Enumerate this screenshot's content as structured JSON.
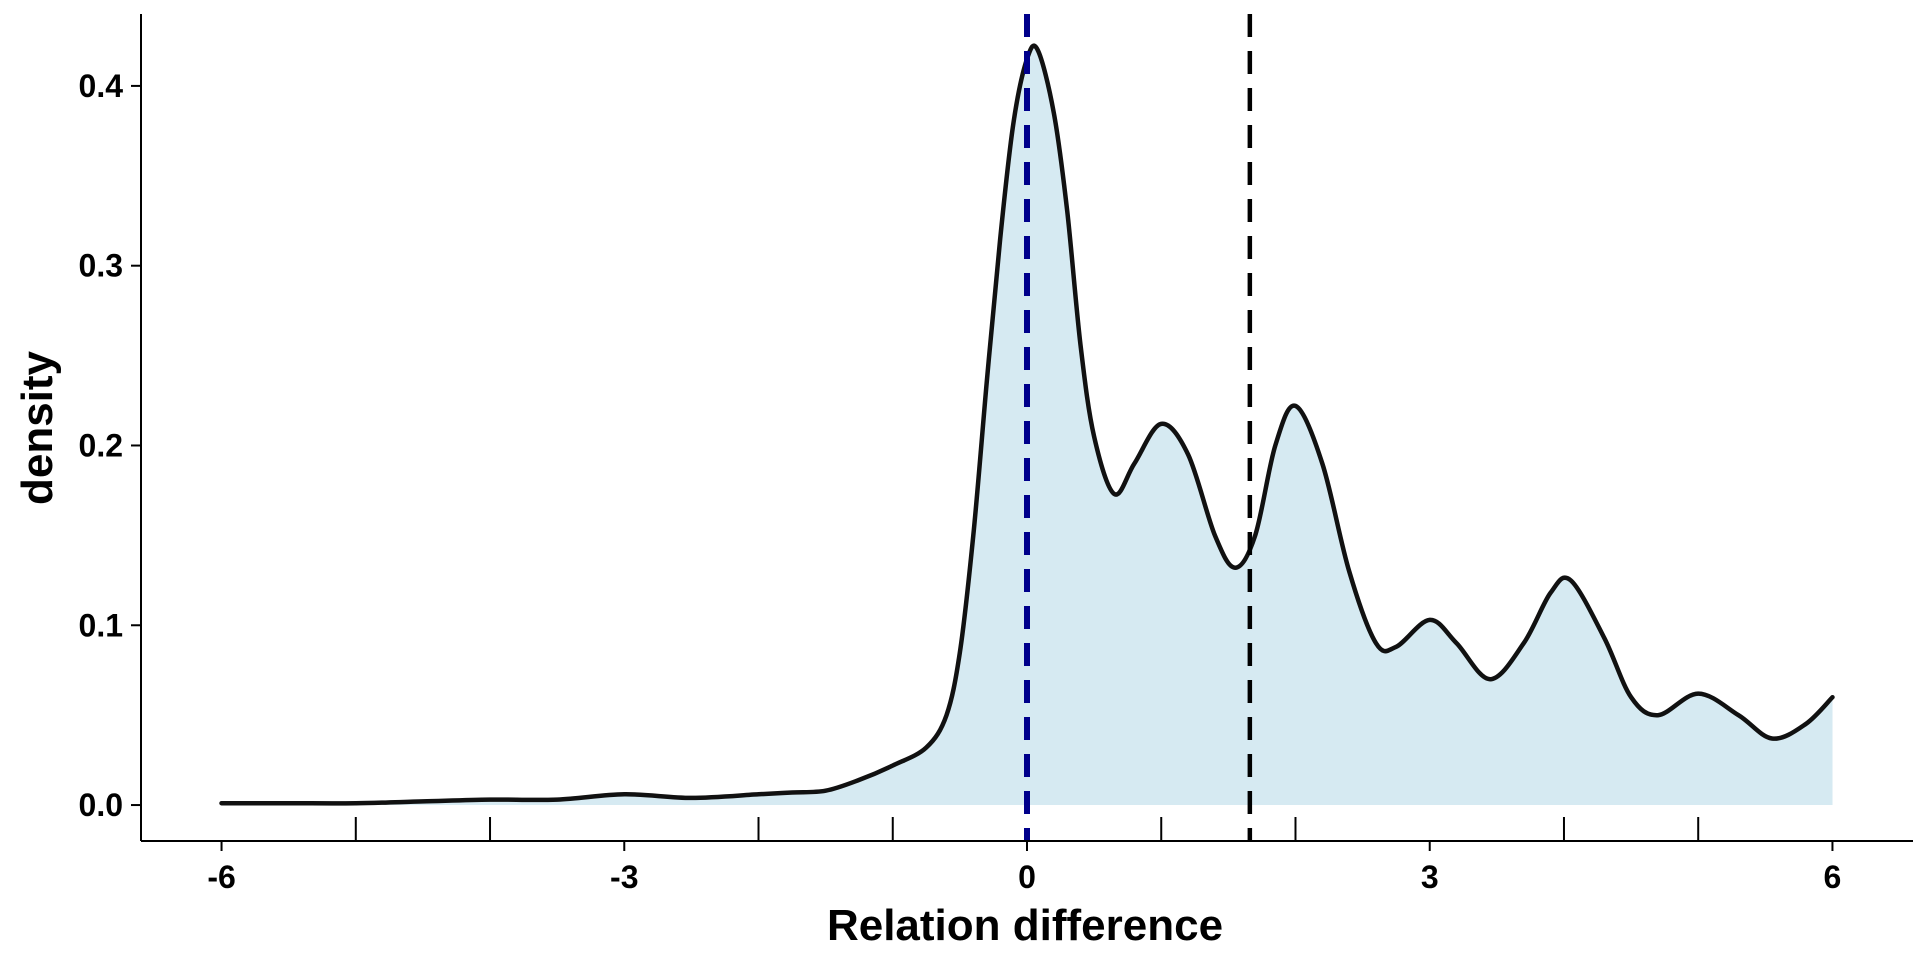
{
  "chart_data": {
    "type": "area",
    "title": "",
    "xlabel": "Relation difference",
    "ylabel": "density",
    "xlim": [
      -6.6,
      6.6
    ],
    "ylim": [
      -0.02,
      0.44
    ],
    "x_ticks": [
      -6,
      -3,
      0,
      3,
      6
    ],
    "x_tick_labels": [
      "-6",
      "-3",
      "0",
      "3",
      "6"
    ],
    "x_minor_ticks": [
      -5,
      -4,
      -2,
      -1,
      1,
      2,
      4,
      5
    ],
    "y_ticks": [
      0.0,
      0.1,
      0.2,
      0.3,
      0.4
    ],
    "y_tick_labels": [
      "0.0",
      "0.1",
      "0.2",
      "0.3",
      "0.4"
    ],
    "grid": false,
    "fill_color": "#d6eaf2",
    "line_color": "#111111",
    "density": {
      "x": [
        -6.0,
        -5.5,
        -5.0,
        -4.5,
        -4.0,
        -3.5,
        -3.0,
        -2.5,
        -2.0,
        -1.75,
        -1.5,
        -1.25,
        -1.0,
        -0.75,
        -0.6,
        -0.5,
        -0.4,
        -0.3,
        -0.2,
        -0.1,
        0.0,
        0.08,
        0.2,
        0.3,
        0.4,
        0.5,
        0.65,
        0.8,
        1.0,
        1.2,
        1.4,
        1.55,
        1.7,
        1.85,
        2.0,
        2.2,
        2.4,
        2.6,
        2.75,
        3.0,
        3.2,
        3.45,
        3.7,
        3.9,
        4.05,
        4.3,
        4.5,
        4.7,
        5.0,
        5.3,
        5.55,
        5.8,
        6.0
      ],
      "y": [
        0.001,
        0.001,
        0.001,
        0.002,
        0.003,
        0.003,
        0.006,
        0.004,
        0.006,
        0.007,
        0.008,
        0.014,
        0.022,
        0.032,
        0.05,
        0.085,
        0.15,
        0.235,
        0.315,
        0.38,
        0.415,
        0.42,
        0.385,
        0.33,
        0.255,
        0.205,
        0.173,
        0.19,
        0.212,
        0.195,
        0.15,
        0.132,
        0.15,
        0.2,
        0.222,
        0.19,
        0.13,
        0.09,
        0.088,
        0.103,
        0.09,
        0.07,
        0.09,
        0.118,
        0.125,
        0.093,
        0.06,
        0.05,
        0.062,
        0.05,
        0.037,
        0.045,
        0.06
      ]
    },
    "reference_lines": [
      {
        "x": 0.0,
        "color": "#00008b",
        "style": "dashed"
      },
      {
        "x": 1.66,
        "color": "#000000",
        "style": "dashed"
      }
    ]
  }
}
